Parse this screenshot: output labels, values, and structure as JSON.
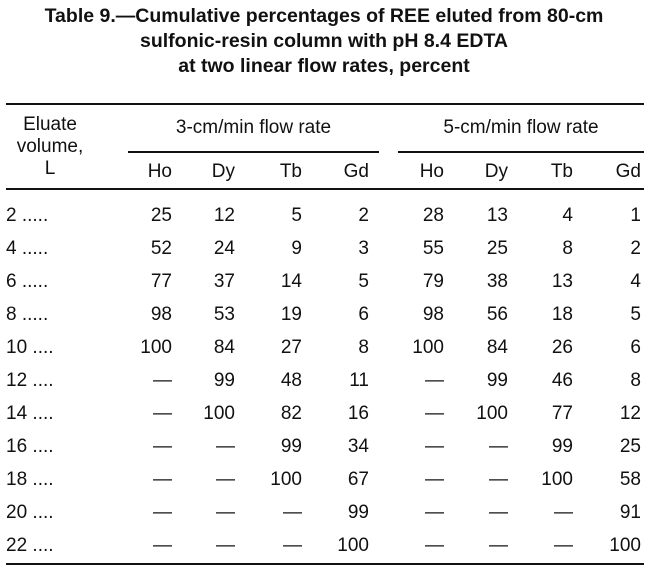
{
  "title": {
    "line1": "Table 9.—Cumulative percentages of REE eluted from 80-cm",
    "line2": "sulfonic-resin column with pH 8.4 EDTA",
    "line3": "at two linear flow rates, percent"
  },
  "stub_header": {
    "line1": "Eluate",
    "line2": "volume,",
    "line3": "L"
  },
  "groups": [
    {
      "label": "3-cm/min flow rate"
    },
    {
      "label": "5-cm/min flow rate"
    }
  ],
  "columns": [
    "Ho",
    "Dy",
    "Tb",
    "Gd",
    "Ho",
    "Dy",
    "Tb",
    "Gd"
  ],
  "rows": [
    {
      "volume": "2 .....",
      "values": [
        "25",
        "12",
        "5",
        "2",
        "28",
        "13",
        "4",
        "1"
      ]
    },
    {
      "volume": "4 .....",
      "values": [
        "52",
        "24",
        "9",
        "3",
        "55",
        "25",
        "8",
        "2"
      ]
    },
    {
      "volume": "6 .....",
      "values": [
        "77",
        "37",
        "14",
        "5",
        "79",
        "38",
        "13",
        "4"
      ]
    },
    {
      "volume": "8 .....",
      "values": [
        "98",
        "53",
        "19",
        "6",
        "98",
        "56",
        "18",
        "5"
      ]
    },
    {
      "volume": "10 ....",
      "values": [
        "100",
        "84",
        "27",
        "8",
        "100",
        "84",
        "26",
        "6"
      ]
    },
    {
      "volume": "12 ....",
      "values": [
        "—",
        "99",
        "48",
        "11",
        "—",
        "99",
        "46",
        "8"
      ]
    },
    {
      "volume": "14 ....",
      "values": [
        "—",
        "100",
        "82",
        "16",
        "—",
        "100",
        "77",
        "12"
      ]
    },
    {
      "volume": "16 ....",
      "values": [
        "—",
        "—",
        "99",
        "34",
        "—",
        "—",
        "99",
        "25"
      ]
    },
    {
      "volume": "18 ....",
      "values": [
        "—",
        "—",
        "100",
        "67",
        "—",
        "—",
        "100",
        "58"
      ]
    },
    {
      "volume": "20 ....",
      "values": [
        "—",
        "—",
        "—",
        "99",
        "—",
        "—",
        "—",
        "91"
      ]
    },
    {
      "volume": "22 ....",
      "values": [
        "—",
        "—",
        "—",
        "100",
        "—",
        "—",
        "—",
        "100"
      ]
    }
  ]
}
